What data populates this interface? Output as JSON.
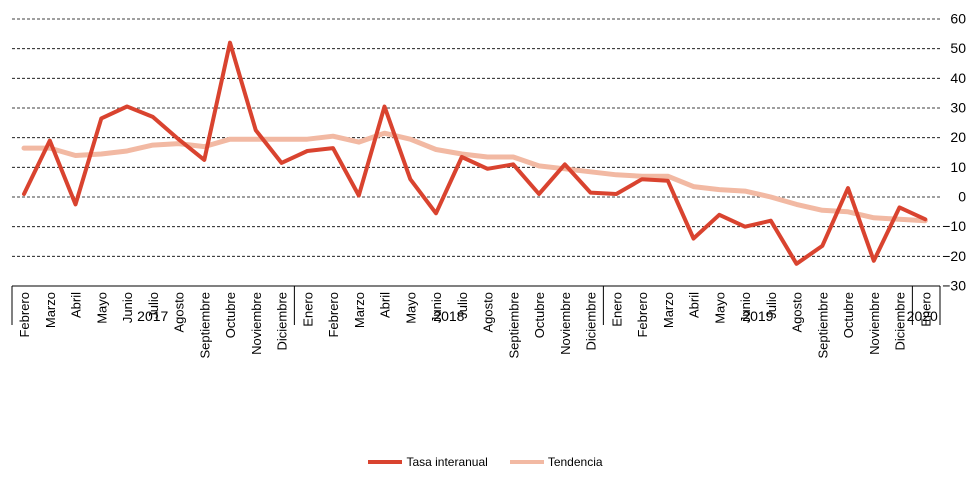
{
  "chart_data": {
    "type": "line",
    "title": "",
    "ylim": [
      -30,
      60
    ],
    "yticks": [
      -30,
      -20,
      -10,
      0,
      10,
      20,
      30,
      40,
      50,
      60
    ],
    "grid": true,
    "legend_position": "bottom",
    "categories": [
      "Febrero",
      "Marzo",
      "Abril",
      "Mayo",
      "Junio",
      "Julio",
      "Agosto",
      "Septiembre",
      "Octubre",
      "Noviembre",
      "Diciembre",
      "Enero",
      "Febrero",
      "Marzo",
      "Abril",
      "Mayo",
      "Junio",
      "Julio",
      "Agosto",
      "Septiembre",
      "Octubre",
      "Noviembre",
      "Diciembre",
      "Enero",
      "Febrero",
      "Marzo",
      "Abril",
      "Mayo",
      "Junio",
      "Julio",
      "Agosto",
      "Septiembre",
      "Octubre",
      "Noviembre",
      "Diciembre",
      "Enero"
    ],
    "years": [
      {
        "label": "2017",
        "count": 11
      },
      {
        "label": "2018",
        "count": 12
      },
      {
        "label": "2019",
        "count": 12
      },
      {
        "label": "2020",
        "count": 1
      }
    ],
    "series": [
      {
        "name": "Tasa interanual",
        "color": "#d9432f",
        "values": [
          1,
          19,
          -2.5,
          26.5,
          30.5,
          27,
          19.5,
          12.5,
          52,
          22.5,
          11.5,
          15.5,
          16.5,
          0.5,
          30.5,
          6,
          -5.5,
          13.5,
          9.5,
          11,
          1,
          11,
          1.5,
          1,
          6,
          5.5,
          -14,
          -6,
          -10,
          -8,
          -22.5,
          -16.5,
          3,
          -21.5,
          -3.5,
          -7.5
        ]
      },
      {
        "name": "Tendencia",
        "color": "#f2b9a3",
        "values": [
          16.5,
          16.5,
          14,
          14.5,
          15.5,
          17.5,
          18,
          17,
          19.5,
          19.5,
          19.5,
          19.5,
          20.5,
          18.5,
          21.5,
          19.5,
          16,
          14.5,
          13.5,
          13.5,
          10.5,
          9.5,
          8.5,
          7.5,
          7,
          7,
          3.5,
          2.5,
          2,
          0,
          -2.5,
          -4.5,
          -5,
          -7,
          -7.5,
          -8
        ]
      }
    ]
  }
}
